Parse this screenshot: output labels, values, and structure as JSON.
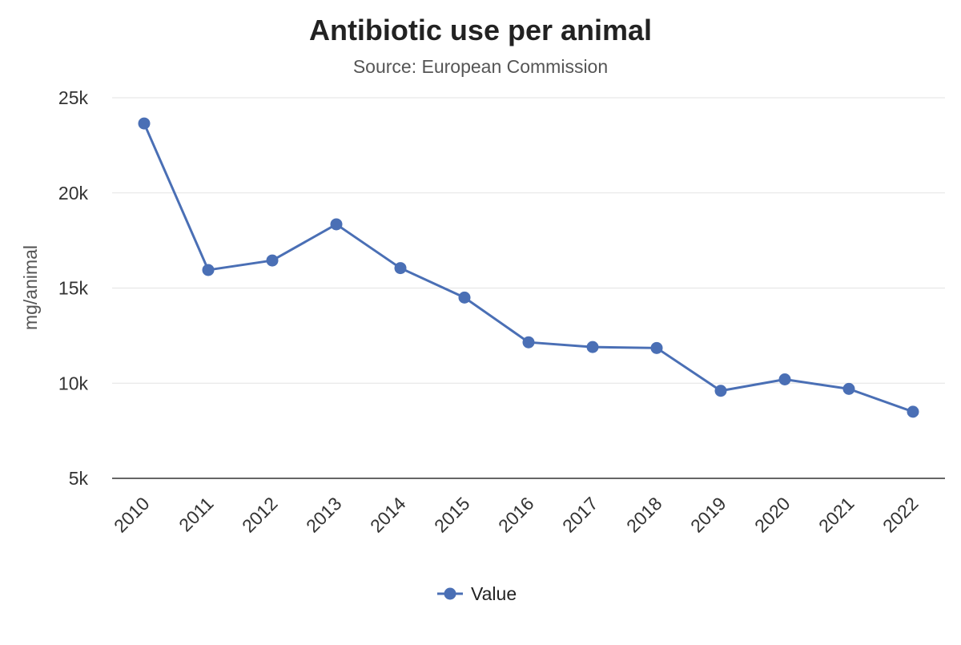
{
  "chart_data": {
    "type": "line",
    "title": "Antibiotic use per animal",
    "subtitle": "Source: European Commission",
    "ylabel": "mg/animal",
    "xlabel": "",
    "categories": [
      "2010",
      "2011",
      "2012",
      "2013",
      "2014",
      "2015",
      "2016",
      "2017",
      "2018",
      "2019",
      "2020",
      "2021",
      "2022"
    ],
    "series": [
      {
        "name": "Value",
        "color": "#4a6fb5",
        "values": [
          23650,
          15950,
          16450,
          18350,
          16050,
          14500,
          12150,
          11900,
          11850,
          9600,
          10200,
          9700,
          8500
        ]
      }
    ],
    "ylim": [
      5000,
      25000
    ],
    "yticks": [
      5000,
      10000,
      15000,
      20000,
      25000
    ],
    "ytick_labels": [
      "5k",
      "10k",
      "15k",
      "20k",
      "25k"
    ],
    "grid": true,
    "legend_position": "bottom-center"
  }
}
